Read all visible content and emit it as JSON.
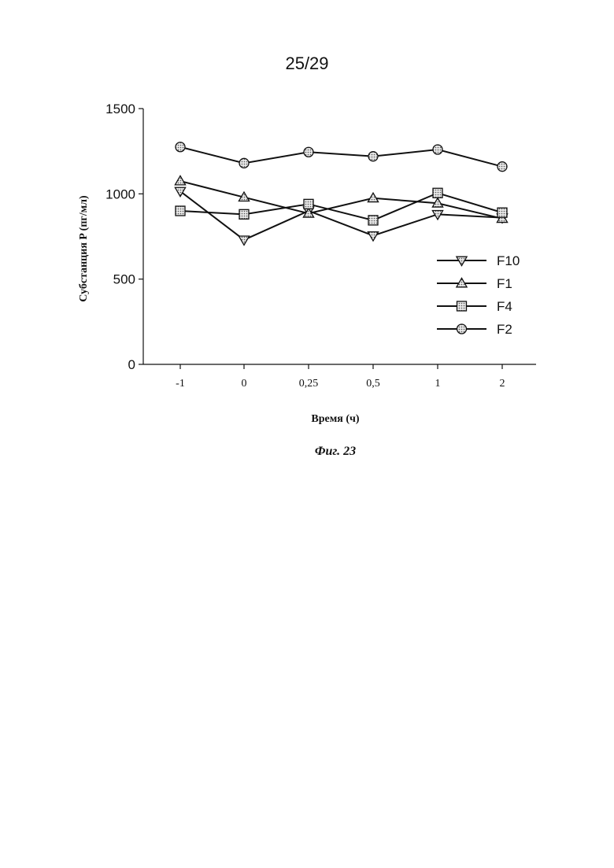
{
  "page": {
    "number": "25/29"
  },
  "figure": {
    "caption": "Фиг. 23"
  },
  "chart_data": {
    "type": "line",
    "title": "",
    "xlabel": "Время (ч)",
    "ylabel": "Субстанция P (пг/мл)",
    "categories": [
      "-1",
      "0",
      "0,25",
      "0,5",
      "1",
      "2"
    ],
    "ylim": [
      0,
      1500
    ],
    "yticks": [
      "0",
      "500",
      "1000",
      "1500"
    ],
    "grid": false,
    "legend_position": "right",
    "series": [
      {
        "name": "F10",
        "marker": "triangle-down",
        "values": [
          1015,
          730,
          900,
          755,
          880,
          860
        ]
      },
      {
        "name": "F1",
        "marker": "triangle-up",
        "values": [
          1075,
          980,
          885,
          975,
          945,
          855
        ]
      },
      {
        "name": "F4",
        "marker": "square",
        "values": [
          900,
          880,
          940,
          845,
          1005,
          890
        ]
      },
      {
        "name": "F2",
        "marker": "circle",
        "values": [
          1275,
          1180,
          1245,
          1220,
          1260,
          1160
        ]
      }
    ]
  }
}
